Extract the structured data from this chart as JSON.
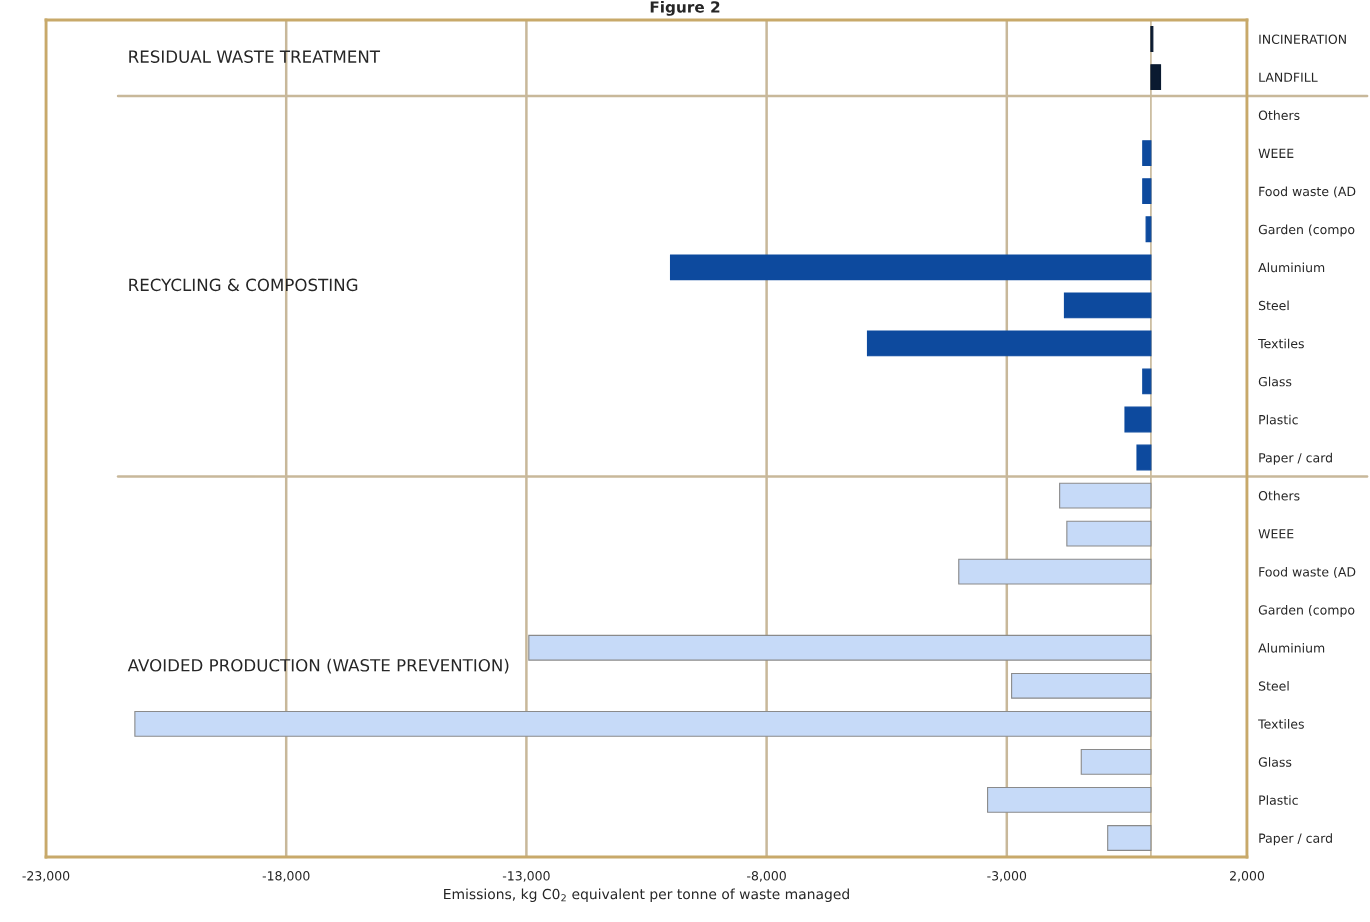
{
  "chart_data": {
    "type": "bar",
    "orientation": "horizontal",
    "title": "Figure 2",
    "xlabel": "Emissions, kg C0$_{2}$ equivalent per tonne of waste managed",
    "categories": [
      "INCINERATION",
      "LANDFILL",
      "Others",
      "WEEE",
      "Food waste (AD",
      "Garden (compo",
      "Aluminium",
      "Steel",
      "Textiles",
      "Glass",
      "Plastic",
      "Paper / card",
      "Others",
      "WEEE",
      "Food waste (AD",
      "Garden (compo",
      "Aluminium",
      "Steel",
      "Textiles",
      "Glass",
      "Plastic",
      "Paper / card"
    ],
    "values": [
      40,
      200,
      0,
      -170,
      -170,
      -100,
      -10000,
      -1800,
      -5900,
      -170,
      -540,
      -290,
      -1900,
      -1750,
      -4000,
      0,
      -12950,
      -2900,
      -21150,
      -1450,
      -3400,
      -900
    ],
    "colors": [
      "#0a1a30",
      "#0a1a30",
      "#0d4a9e",
      "#0d4a9e",
      "#0d4a9e",
      "#0d4a9e",
      "#0d4a9e",
      "#0d4a9e",
      "#0d4a9e",
      "#0d4a9e",
      "#0d4a9e",
      "#0d4a9e",
      "#c6daf8",
      "#c6daf8",
      "#c6daf8",
      "#c6daf8",
      "#c6daf8",
      "#c6daf8",
      "#c6daf8",
      "#c6daf8",
      "#c6daf8",
      "#c6daf8"
    ],
    "xlim": [
      -23000,
      2000
    ],
    "xticks": [
      {
        "value": -23000,
        "label": "-23,000"
      },
      {
        "value": -18000,
        "label": "-18,000"
      },
      {
        "value": -13000,
        "label": "-13,000"
      },
      {
        "value": -8000,
        "label": "-8,000"
      },
      {
        "value": -3000,
        "label": "-3,000"
      },
      {
        "value": 2000,
        "label": "2,000"
      }
    ],
    "grid": "x",
    "ref_lines": [
      {
        "axis": "x",
        "value": 0,
        "color": "#c8b89a"
      }
    ],
    "annotations": [
      "RESIDUAL WASTE TREATMENT",
      "RECYCLING & COMPOSTING",
      "AVOIDED PRODUCTION (WASTE PREVENTION)"
    ]
  }
}
